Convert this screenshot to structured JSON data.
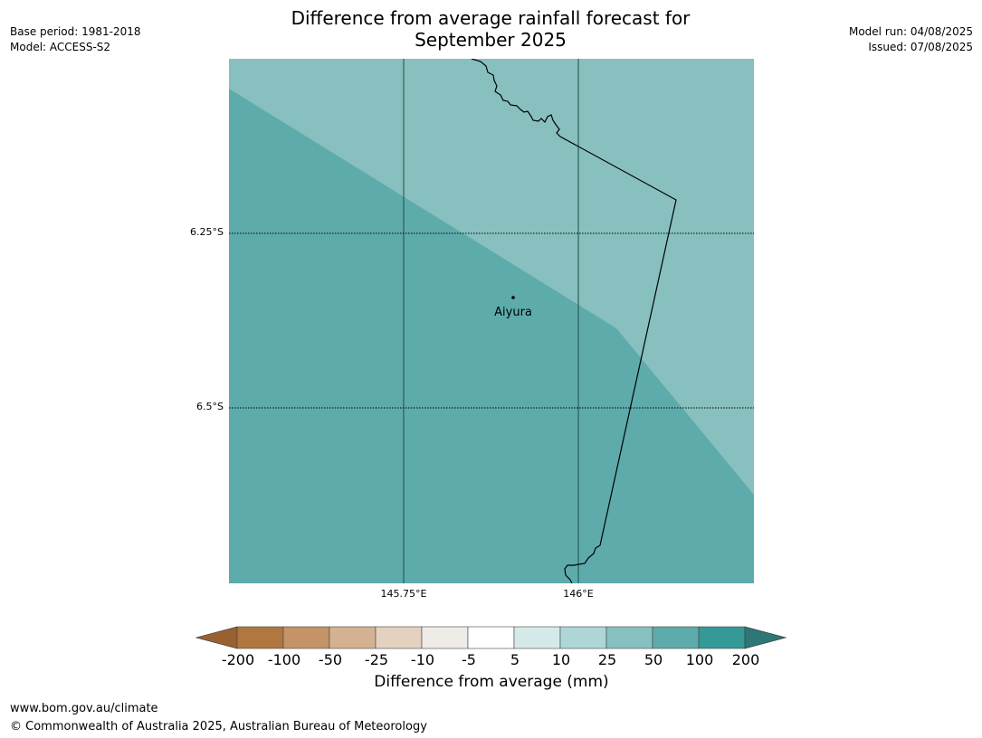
{
  "title_line1": "Difference from average rainfall forecast for",
  "title_line2": "September 2025",
  "base_period": "Base period: 1981-2018",
  "model": "Model: ACCESS-S2",
  "model_run": "Model run: 04/08/2025",
  "issued": "Issued: 07/08/2025",
  "map": {
    "lat_labels": [
      "6.25°S",
      "6.5°S"
    ],
    "lon_labels": [
      "145.75°E",
      "146°E"
    ],
    "place_name": "Aiyura",
    "colors": {
      "lighter_band": "#87c0bf",
      "darker_band": "#5eabab"
    }
  },
  "colorbar": {
    "label": "Difference from average (mm)",
    "ticks": [
      "-200",
      "-100",
      "-50",
      "-25",
      "-10",
      "-5",
      "5",
      "10",
      "25",
      "50",
      "100",
      "200"
    ],
    "colors": [
      "#9a6130",
      "#b07840",
      "#c49467",
      "#d4b291",
      "#e4d1bf",
      "#efebe7",
      "#ffffff",
      "#d6e9e9",
      "#aed6d6",
      "#86c1c0",
      "#5eabab",
      "#359998",
      "#2d7777"
    ]
  },
  "footer_url": "www.bom.gov.au/climate",
  "footer_copyright": "© Commonwealth of Australia 2025, Australian Bureau of Meteorology"
}
